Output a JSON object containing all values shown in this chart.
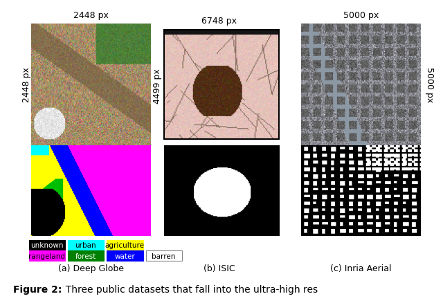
{
  "datasets": [
    "Deep Globe",
    "ISIC",
    "Inria Aerial"
  ],
  "dataset_labels": [
    "(a) Deep Globe",
    "(b) ISIC",
    "(c) Inria Aerial"
  ],
  "top_labels": [
    "2448 px",
    "6748 px",
    "5000 px"
  ],
  "left_label_col1": "2448 px",
  "left_label_col2": "4499 px",
  "right_label_col3": "5000 px",
  "legend_items": [
    {
      "label": "unknown",
      "color": "#000000",
      "text_color": "#ffffff"
    },
    {
      "label": "urban",
      "color": "#00ffff",
      "text_color": "#000000"
    },
    {
      "label": "agriculture",
      "color": "#ffff00",
      "text_color": "#000000"
    },
    {
      "label": "rangeland",
      "color": "#ff00ff",
      "text_color": "#000000"
    },
    {
      "label": "forest",
      "color": "#008000",
      "text_color": "#ffffff"
    },
    {
      "label": "water",
      "color": "#0000ff",
      "text_color": "#ffffff"
    },
    {
      "label": "barren",
      "color": "#ffffff",
      "text_color": "#000000"
    }
  ],
  "fig_caption": "Figure 2:",
  "fig_caption_rest": "  Three public datasets that fall into the ultra-high res",
  "background": "#ffffff"
}
